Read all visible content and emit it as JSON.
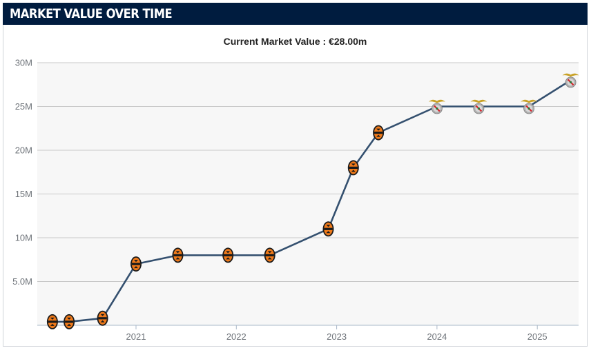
{
  "header": {
    "title": "MARKET VALUE OVER TIME"
  },
  "chart_data": {
    "type": "line",
    "title": "Current Market Value : €28.00m",
    "xlabel": "",
    "ylabel": "",
    "x_ticks": [
      "2021",
      "2022",
      "2023",
      "2024",
      "2025"
    ],
    "y_ticks": [
      "5.0M",
      "10M",
      "15M",
      "20M",
      "25M",
      "30M"
    ],
    "ylim": [
      0,
      30
    ],
    "grid": true,
    "series": [
      {
        "values": [
          {
            "x": "2020-03",
            "y": 0.4,
            "club": "shakhtar"
          },
          {
            "x": "2020-05",
            "y": 0.4,
            "club": "shakhtar"
          },
          {
            "x": "2020-09",
            "y": 0.8,
            "club": "shakhtar"
          },
          {
            "x": "2021-01",
            "y": 7.0,
            "club": "shakhtar"
          },
          {
            "x": "2021-06",
            "y": 8.0,
            "club": "shakhtar"
          },
          {
            "x": "2021-12",
            "y": 8.0,
            "club": "shakhtar"
          },
          {
            "x": "2022-05",
            "y": 8.0,
            "club": "shakhtar"
          },
          {
            "x": "2022-12",
            "y": 11.0,
            "club": "shakhtar"
          },
          {
            "x": "2023-03",
            "y": 18.0,
            "club": "shakhtar"
          },
          {
            "x": "2023-06",
            "y": 22.0,
            "club": "shakhtar"
          },
          {
            "x": "2024-01",
            "y": 25.0,
            "club": "benfica"
          },
          {
            "x": "2024-06",
            "y": 25.0,
            "club": "benfica"
          },
          {
            "x": "2024-12",
            "y": 25.0,
            "club": "benfica"
          },
          {
            "x": "2025-05",
            "y": 28.0,
            "club": "benfica"
          }
        ]
      }
    ],
    "colors": {
      "line": "#34506f",
      "grid": "#c8c8c8",
      "plot_bg": "#f7f7f7",
      "header_bg": "#001c3f"
    }
  }
}
